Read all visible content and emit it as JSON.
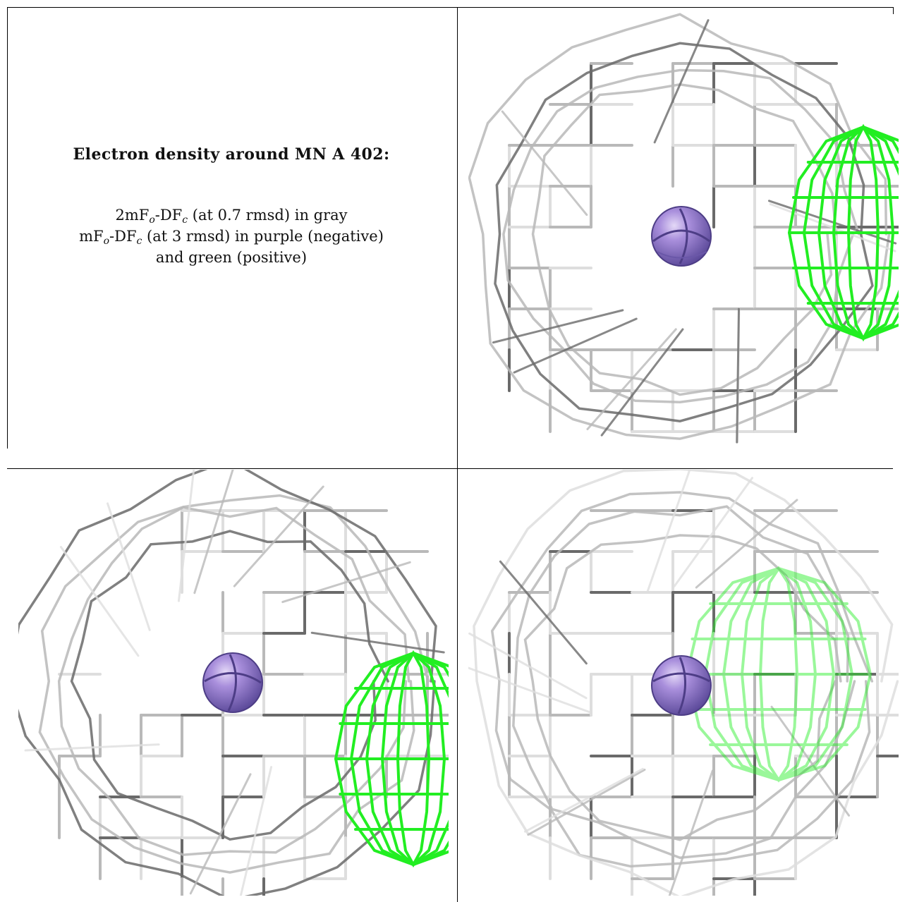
{
  "caption": {
    "title": "Electron density around MN A 402:",
    "line1": {
      "prefix": "2mF",
      "sub1": "o",
      "mid": "-DF",
      "sub2": "c",
      "suffix": " (at 0.7 rmsd) in gray"
    },
    "line2": {
      "prefix": "mF",
      "sub1": "o",
      "mid": "-DF",
      "sub2": "c",
      "suffix": " (at 3 rmsd) in purple (negative)"
    },
    "line3": "and green (positive)"
  },
  "colors": {
    "mesh_gray": "#b9b9b9",
    "mesh_dark": "#6a6a6a",
    "mesh_light": "#dedede",
    "positive_green": "#22ee22",
    "atom_purple": "#9b7fd6",
    "atom_highlight": "#d9ccf5",
    "atom_shadow": "#5c4a9a"
  },
  "icons": [
    "manganese-atom-sphere",
    "gray-density-mesh",
    "green-difference-mesh"
  ]
}
